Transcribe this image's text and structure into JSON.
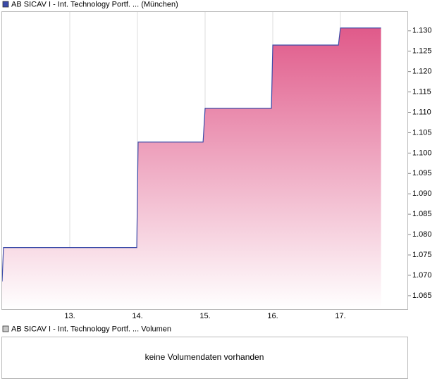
{
  "chart_data": {
    "type": "area",
    "series": [
      {
        "name": "AB SICAV I - Int. Technology Portf. ... (München)",
        "color": "#3a4aa8",
        "x": [
          12.0,
          12.02,
          13.99,
          14.01,
          14.97,
          15.0,
          15.98,
          16.0,
          16.97,
          17.0,
          17.6
        ],
        "values": [
          1.0685,
          1.0768,
          1.0768,
          1.1027,
          1.1027,
          1.111,
          1.111,
          1.1265,
          1.1265,
          1.1307,
          1.1307
        ]
      }
    ],
    "fill_color": "#e05a8a",
    "xlim": [
      12,
      18
    ],
    "xticks": [
      {
        "value": 13,
        "label": "13."
      },
      {
        "value": 14,
        "label": "14."
      },
      {
        "value": 15,
        "label": "15."
      },
      {
        "value": 16,
        "label": "16."
      },
      {
        "value": 17,
        "label": "17."
      }
    ],
    "ylim": [
      1.0617,
      1.1348
    ],
    "yticks": [
      1.065,
      {
        "value": 1.07,
        "label": "1.070"
      },
      1.075,
      {
        "value": 1.08,
        "label": "1.080"
      },
      1.085,
      {
        "value": 1.09,
        "label": "1.090"
      },
      1.095,
      {
        "value": 1.1,
        "label": "1.100"
      },
      1.105,
      {
        "value": 1.11,
        "label": "1.110"
      },
      1.115,
      {
        "value": 1.12,
        "label": "1.120"
      },
      1.125,
      {
        "value": 1.13,
        "label": "1.130"
      }
    ],
    "xgrid": true
  },
  "volume_panel": {
    "title": "AB SICAV I - Int. Technology Portf. ... Volumen",
    "message": "keine Volumendaten vorhanden"
  }
}
